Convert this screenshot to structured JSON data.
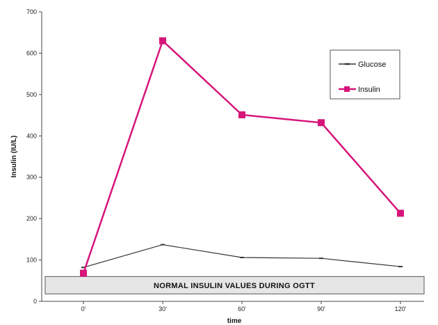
{
  "chart_data": {
    "type": "line",
    "x_categories": [
      "0'",
      "30'",
      "60'",
      "90'",
      "120'"
    ],
    "xlabel": "time",
    "ylabel": "Insulin (IU/L)",
    "ylim": [
      0,
      700
    ],
    "yticks": [
      0,
      100,
      200,
      300,
      400,
      500,
      600,
      700
    ],
    "grid": false,
    "legend_position": "top-right",
    "series": [
      {
        "name": "Glucose",
        "color": "#333333",
        "marker": "small-dash",
        "values": [
          82,
          137,
          106,
          104,
          84
        ]
      },
      {
        "name": "Insulin",
        "color": "#d6157a",
        "marker": "square",
        "values": [
          68,
          630,
          451,
          432,
          213
        ]
      }
    ],
    "band": {
      "label": "NORMAL INSULIN  VALUES DURING OGTT",
      "range": [
        18,
        60
      ],
      "fill": "#e6e6e6"
    }
  }
}
